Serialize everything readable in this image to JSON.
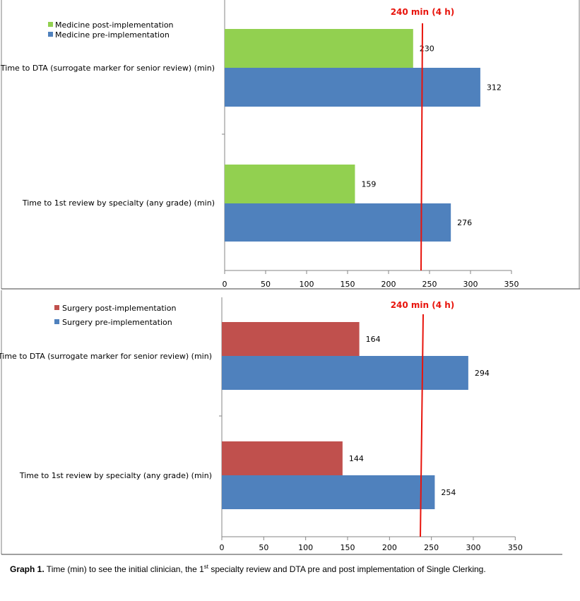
{
  "chart_data": [
    {
      "type": "bar",
      "orientation": "horizontal",
      "categories": [
        "Time to DTA (surrogate marker for senior review) (min)",
        "Time to 1st review by specialty (any grade) (min)"
      ],
      "series": [
        {
          "name": "Medicine post-implementation",
          "color": "#92d050",
          "values": [
            230,
            159
          ]
        },
        {
          "name": "Medicine pre-implementation",
          "color": "#4f81bd",
          "values": [
            312,
            276
          ]
        }
      ],
      "xticks": [
        0,
        50,
        100,
        150,
        200,
        250,
        300,
        350
      ],
      "xlim": [
        0,
        350
      ],
      "reference_line": {
        "value": 240,
        "label": "240 min (4 h)",
        "color": "#e8140c"
      },
      "grid": false,
      "legend_position": "top-left"
    },
    {
      "type": "bar",
      "orientation": "horizontal",
      "categories": [
        "Time to DTA (surrogate marker for senior review) (min)",
        "Time to 1st review by specialty (any grade) (min)"
      ],
      "series": [
        {
          "name": "Surgery post-implementation",
          "color": "#c0504d",
          "values": [
            164,
            144
          ]
        },
        {
          "name": "Surgery pre-implementation",
          "color": "#4f81bd",
          "values": [
            294,
            254
          ]
        }
      ],
      "xticks": [
        0,
        50,
        100,
        150,
        200,
        250,
        300,
        350
      ],
      "xlim": [
        0,
        350
      ],
      "reference_line": {
        "value": 240,
        "label": "240 min (4 h)",
        "color": "#e8140c"
      },
      "grid": false,
      "legend_position": "top-left"
    }
  ],
  "caption": {
    "label": "Graph 1.",
    "text_before_sup": " Time (min) to see the initial clinician, the 1",
    "sup": "st",
    "text_after_sup": " specialty review and DTA pre and post implementation of Single Clerking."
  }
}
